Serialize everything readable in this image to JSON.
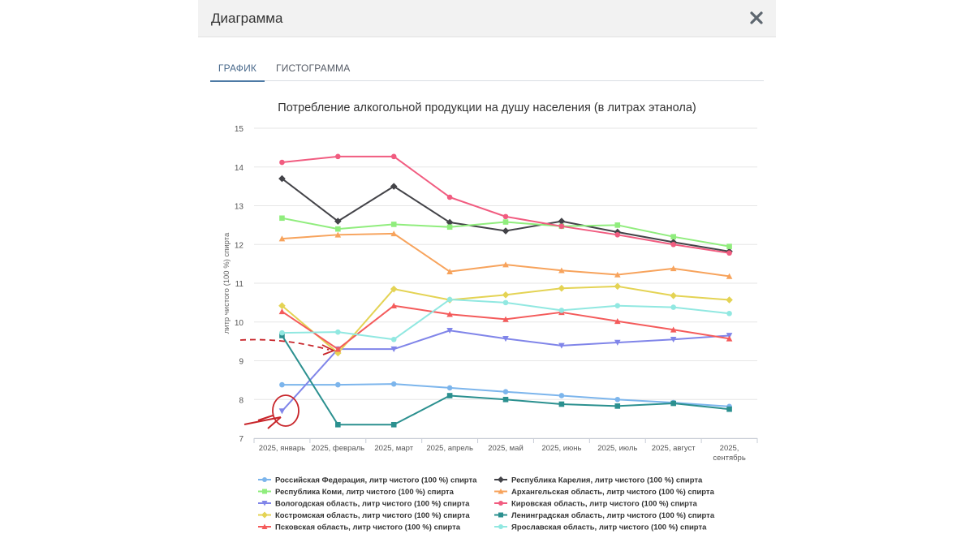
{
  "modal": {
    "title": "Диаграмма"
  },
  "tabs": [
    {
      "label": "ГРАФИК",
      "active": true
    },
    {
      "label": "ГИСТОГРАММА",
      "active": false
    }
  ],
  "chart_data": {
    "type": "line",
    "title": "Потребление алкогольной продукции на душу населения (в литрах этанола)",
    "ylabel": "литр чистого (100 %) спирта",
    "xlabel": "",
    "ylim": [
      7,
      15
    ],
    "yticks": [
      "7",
      "8",
      "9",
      "10",
      "11",
      "12",
      "13",
      "14",
      "15"
    ],
    "categories": [
      [
        "2025, январь"
      ],
      [
        "2025, февраль"
      ],
      [
        "2025, март"
      ],
      [
        "2025, апрель"
      ],
      [
        "2025, май"
      ],
      [
        "2025, июнь"
      ],
      [
        "2025, июль"
      ],
      [
        "2025, август"
      ],
      [
        "2025,",
        "сентябрь"
      ]
    ],
    "series": [
      {
        "name": "Российская Федерация, литр чистого (100 %) спирта",
        "color": "#7cb5ec",
        "marker": "circle",
        "values": [
          8.38,
          8.38,
          8.4,
          8.3,
          8.2,
          8.1,
          8.0,
          7.92,
          7.82
        ]
      },
      {
        "name": "Республика Карелия, литр чистого (100 %) спирта",
        "color": "#434348",
        "marker": "diamond",
        "values": [
          13.7,
          12.6,
          13.5,
          12.57,
          12.35,
          12.6,
          12.32,
          12.06,
          11.82
        ]
      },
      {
        "name": "Республика Коми, литр чистого (100 %) спирта",
        "color": "#90ed7d",
        "marker": "square",
        "values": [
          12.68,
          12.4,
          12.52,
          12.45,
          12.58,
          12.47,
          12.5,
          12.2,
          11.95
        ]
      },
      {
        "name": "Архангельская область, литр чистого (100 %) спирта",
        "color": "#f7a35c",
        "marker": "triangle",
        "values": [
          12.15,
          12.25,
          12.28,
          11.3,
          11.48,
          11.33,
          11.22,
          11.38,
          11.18
        ]
      },
      {
        "name": "Вологодская область, литр чистого (100 %) спирта",
        "color": "#8085e9",
        "marker": "triangle-down",
        "values": [
          7.7,
          9.3,
          9.3,
          9.78,
          9.57,
          9.39,
          9.47,
          9.55,
          9.65
        ]
      },
      {
        "name": "Кировская область, литр чистого (100 %) спирта",
        "color": "#f15c80",
        "marker": "circle",
        "values": [
          14.12,
          14.27,
          14.27,
          13.22,
          12.72,
          12.47,
          12.25,
          12.0,
          11.78
        ]
      },
      {
        "name": "Костромская область, литр чистого (100 %) спирта",
        "color": "#e4d354",
        "marker": "diamond",
        "values": [
          10.42,
          9.2,
          10.85,
          10.57,
          10.7,
          10.87,
          10.92,
          10.68,
          10.57
        ]
      },
      {
        "name": "Ленинградская область, литр чистого (100 %) спирта",
        "color": "#2b908f",
        "marker": "square",
        "values": [
          9.65,
          7.35,
          7.35,
          8.1,
          8.0,
          7.88,
          7.83,
          7.9,
          7.75
        ]
      },
      {
        "name": "Псковская область, литр чистого (100 %) спирта",
        "color": "#f45b5b",
        "marker": "triangle",
        "values": [
          10.27,
          9.3,
          10.42,
          10.2,
          10.07,
          10.25,
          10.02,
          9.8,
          9.57
        ]
      },
      {
        "name": "Ярославская область, литр чистого (100 %) спирта",
        "color": "#91e8e1",
        "marker": "circle",
        "values": [
          9.72,
          9.74,
          9.55,
          10.58,
          10.5,
          10.3,
          10.42,
          10.38,
          10.22
        ]
      }
    ]
  }
}
